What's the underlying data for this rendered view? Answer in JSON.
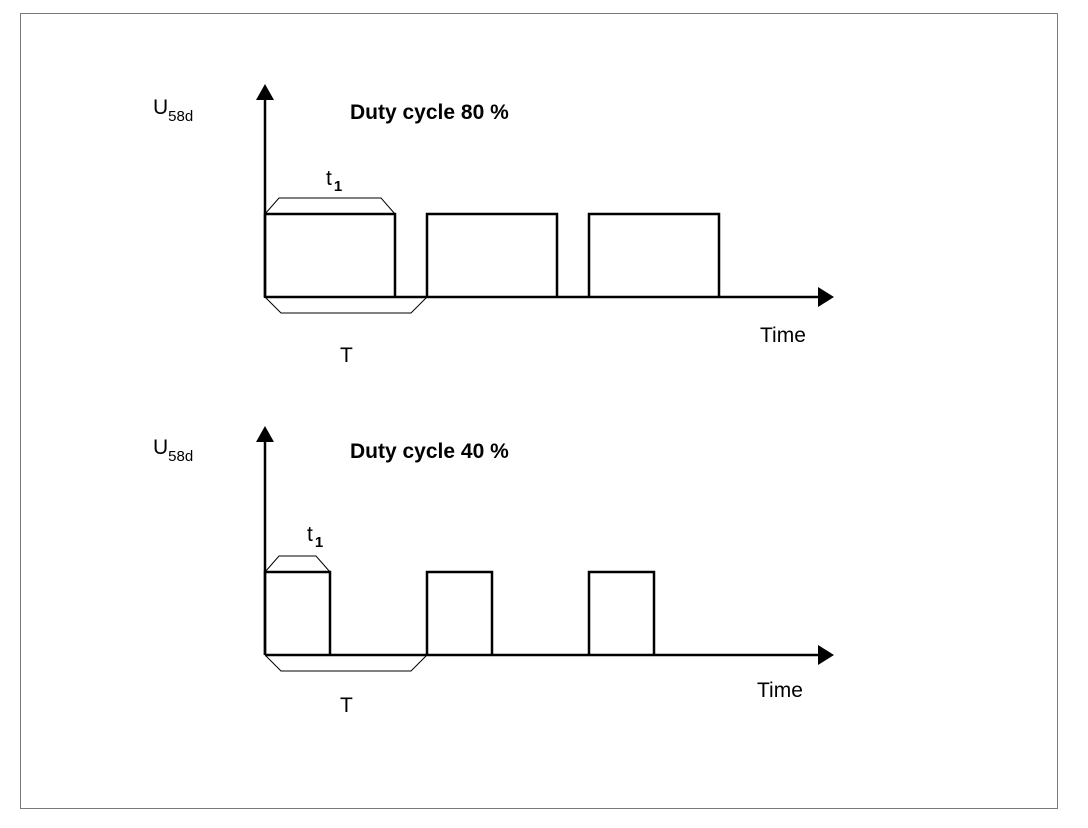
{
  "panels": [
    {
      "y_label": "U",
      "y_label_sub": "58d",
      "title": "Duty cycle 80 %",
      "t1_label": "t",
      "t1_sub": "1",
      "period_label": "T",
      "x_label": "Time",
      "duty_cycle": 0.8
    },
    {
      "y_label": "U",
      "y_label_sub": "58d",
      "title": "Duty cycle 40 %",
      "t1_label": "t",
      "t1_sub": "1",
      "period_label": "T",
      "x_label": "Time",
      "duty_cycle": 0.4
    }
  ],
  "colors": {
    "line": "#000000",
    "frame": "#7a7a7a",
    "background": "#ffffff"
  }
}
